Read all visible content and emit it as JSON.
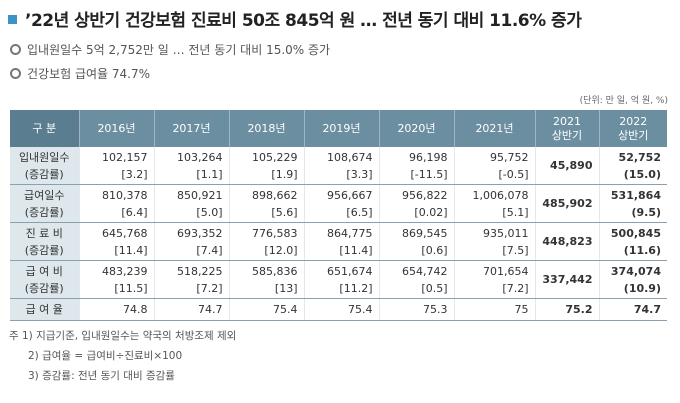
{
  "title": "’22년 상반기 건강보험 진료비 50조 845억 원 … 전년 동기 대비 11.6% 증가",
  "subtitles": [
    "입내원일수 5억 2,752만 일 … 전년 동기 대비 15.0% 증가",
    "건강보험 급여율 74.7%"
  ],
  "unit": "(단위: 만 일, 억 원, %)",
  "table": {
    "header": {
      "label": "구  분",
      "years": [
        "2016년",
        "2017년",
        "2018년",
        "2019년",
        "2020년",
        "2021년"
      ],
      "h2021a": "2021",
      "h2021b": "상반기",
      "h2022a": "2022",
      "h2022b": "상반기"
    },
    "rows": [
      {
        "label1": "입내원일수",
        "label2": "(증감률)",
        "values": [
          "102,157",
          "103,264",
          "105,229",
          "108,674",
          "96,198",
          "95,752",
          "45,890",
          "52,752"
        ],
        "rates": [
          "[3.2]",
          "[1.1]",
          "[1.9]",
          "[3.3]",
          "[-11.5]",
          "[-0.5]",
          "",
          "(15.0)"
        ]
      },
      {
        "label1": "급여일수",
        "label2": "(증감률)",
        "values": [
          "810,378",
          "850,921",
          "898,662",
          "956,667",
          "956,822",
          "1,006,078",
          "485,902",
          "531,864"
        ],
        "rates": [
          "[6.4]",
          "[5.0]",
          "[5.6]",
          "[6.5]",
          "[0.02]",
          "[5.1]",
          "",
          "(9.5)"
        ]
      },
      {
        "label1": "진 료 비",
        "label2": "(증감률)",
        "values": [
          "645,768",
          "693,352",
          "776,583",
          "864,775",
          "869,545",
          "935,011",
          "448,823",
          "500,845"
        ],
        "rates": [
          "[11.4]",
          "[7.4]",
          "[12.0]",
          "[11.4]",
          "[0.6]",
          "[7.5]",
          "",
          "(11.6)"
        ]
      },
      {
        "label1": "급 여 비",
        "label2": "(증감률)",
        "values": [
          "483,239",
          "518,225",
          "585,836",
          "651,674",
          "654,742",
          "701,654",
          "337,442",
          "374,074"
        ],
        "rates": [
          "[11.5]",
          "[7.2]",
          "[13]",
          "[11.2]",
          "[0.5]",
          "[7.2]",
          "",
          "(10.9)"
        ]
      }
    ],
    "ratio_row": {
      "label": "급 여 율",
      "values": [
        "74.8",
        "74.7",
        "75.4",
        "75.4",
        "75.3",
        "75",
        "75.2",
        "74.7"
      ]
    }
  },
  "footnotes": [
    "주 1) 지급기준, 입내원일수는 약국의 처방조제 제외",
    "2) 급여율 = 급여비÷진료비×100",
    "3) 증감률: 전년 동기 대비 증감률"
  ],
  "colors": {
    "accent": "#3a93c9",
    "header_bg": "#6b8ea0",
    "row_header_bg": "#dde7ec"
  }
}
